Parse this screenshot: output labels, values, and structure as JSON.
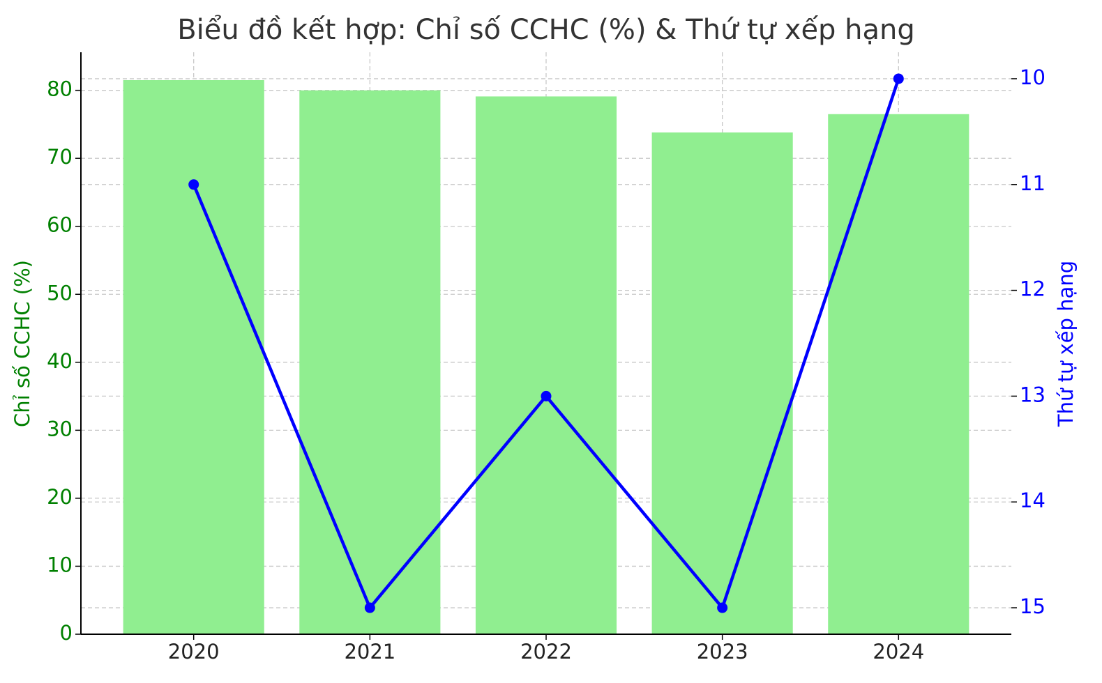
{
  "chart_data": {
    "type": "bar",
    "title": "Biểu đồ kết hợp: Chỉ số CCHC (%) & Thứ tự xếp hạng",
    "categories": [
      "2020",
      "2021",
      "2022",
      "2023",
      "2024"
    ],
    "y_label": "Chỉ số CCHC (%)",
    "y2_label": "Thứ tự xếp hạng",
    "series": [
      {
        "type": "bar",
        "color": "#90ee90",
        "values": [
          81.5,
          80.0,
          79.1,
          73.8,
          76.5
        ]
      },
      {
        "type": "line",
        "axis": "y2",
        "color": "#0000ff",
        "values": [
          11,
          15,
          13,
          15,
          10
        ]
      }
    ],
    "ylim": [
      0,
      85.6
    ],
    "yticks": [
      0,
      10,
      20,
      30,
      40,
      50,
      60,
      70,
      80
    ],
    "y2lim": [
      15.25,
      9.75
    ],
    "y2ticks": [
      10,
      11,
      12,
      13,
      14,
      15
    ],
    "y_color": "#008000",
    "y2_color": "#0000ff",
    "grid": true
  }
}
